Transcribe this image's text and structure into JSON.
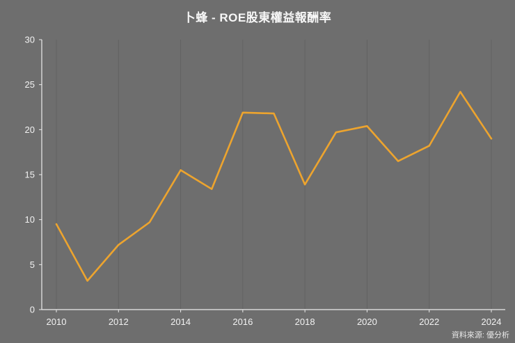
{
  "title": "卜蜂 - ROE股東權益報酬率",
  "source": "資料來源: 優分析",
  "colors": {
    "background": "#6e6e6e",
    "line": "#EDA42E",
    "axis": "#ececec",
    "grid": "#626262",
    "text": "#f7f7f7",
    "tick_text": "#f2f2f2"
  },
  "chart_data": {
    "type": "line",
    "title": "卜蜂 - ROE股東權益報酬率",
    "x": [
      2010,
      2011,
      2012,
      2013,
      2014,
      2015,
      2016,
      2017,
      2018,
      2019,
      2020,
      2021,
      2022,
      2023,
      2024
    ],
    "values": [
      9.5,
      3.2,
      7.2,
      9.7,
      15.5,
      13.4,
      21.9,
      21.8,
      13.9,
      19.7,
      20.4,
      16.5,
      18.2,
      24.2,
      19.0
    ],
    "series_name": "ROE股東權益報酬率",
    "xlabel": "",
    "ylabel": "",
    "ylim": [
      0,
      30
    ],
    "yticks": [
      0,
      5,
      10,
      15,
      20,
      25,
      30
    ],
    "xticks": [
      2010,
      2012,
      2014,
      2016,
      2018,
      2020,
      2022,
      2024
    ],
    "grid": "vertical-only",
    "legend": "none",
    "source_note": "資料來源: 優分析"
  }
}
